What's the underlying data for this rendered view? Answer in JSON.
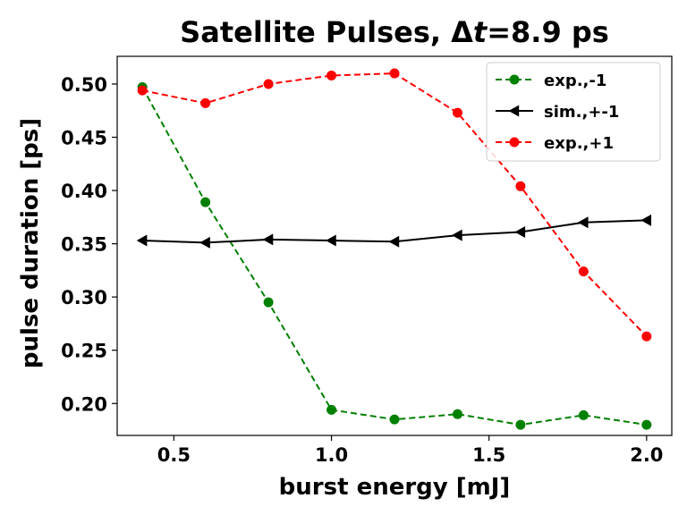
{
  "chart_data": {
    "type": "line",
    "title": "Satellite Pulses, Δt=8.9 ps",
    "title_parts": {
      "pre": "Satellite Pulses, Δ",
      "italic": "t",
      "post": "=8.9 ps"
    },
    "xlabel": "burst energy [mJ]",
    "ylabel": "pulse duration [ps]",
    "xlim": [
      0.32,
      2.08
    ],
    "ylim": [
      0.17,
      0.526
    ],
    "xticks": [
      0.5,
      1.0,
      1.5,
      2.0
    ],
    "xtick_labels": [
      "0.5",
      "1.0",
      "1.5",
      "2.0"
    ],
    "yticks": [
      0.2,
      0.25,
      0.3,
      0.35,
      0.4,
      0.45,
      0.5
    ],
    "ytick_labels": [
      "0.20",
      "0.25",
      "0.30",
      "0.35",
      "0.40",
      "0.45",
      "0.50"
    ],
    "grid": false,
    "legend_position": "top-right",
    "x": [
      0.4,
      0.6,
      0.8,
      1.0,
      1.2,
      1.4,
      1.6,
      1.8,
      2.0
    ],
    "series": [
      {
        "name": "exp.,-1",
        "color": "#008000",
        "dash": true,
        "marker": "circle",
        "values": [
          0.497,
          0.389,
          0.295,
          0.194,
          0.185,
          0.19,
          0.18,
          0.189,
          0.18
        ]
      },
      {
        "name": "sim.,+-1",
        "color": "#000000",
        "dash": false,
        "marker": "triangle-left",
        "values": [
          0.353,
          0.351,
          0.354,
          0.353,
          0.352,
          0.358,
          0.361,
          0.37,
          0.372
        ]
      },
      {
        "name": "exp.,+1",
        "color": "#ff0000",
        "dash": true,
        "marker": "circle",
        "values": [
          0.494,
          0.482,
          0.5,
          0.508,
          0.51,
          0.473,
          0.404,
          0.324,
          0.263
        ]
      }
    ]
  }
}
